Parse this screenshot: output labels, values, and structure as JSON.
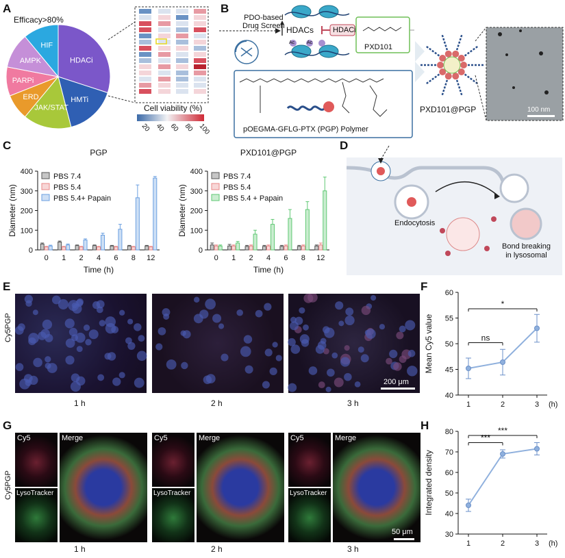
{
  "panel_letters": {
    "A": "A",
    "B": "B",
    "C": "C",
    "D": "D",
    "E": "E",
    "F": "F",
    "G": "G",
    "H": "H"
  },
  "panelA": {
    "title": "Efficacy>80%",
    "slices": [
      {
        "label": "HDACi",
        "value": 30,
        "color": "#7b57c9"
      },
      {
        "label": "HMTi",
        "value": 16,
        "color": "#2f5fb3"
      },
      {
        "label": "JAK/STAT",
        "value": 15,
        "color": "#a8c83a"
      },
      {
        "label": "ERD",
        "value": 8,
        "color": "#e99a2b"
      },
      {
        "label": "PARPi",
        "value": 9,
        "color": "#f07aa0"
      },
      {
        "label": "AMPK",
        "value": 11,
        "color": "#c58fd8"
      },
      {
        "label": "HIF",
        "value": 11,
        "color": "#2ba8e0"
      }
    ],
    "colorbar_title": "Cell viability (%)",
    "colorbar_ticks": [
      "20",
      "40",
      "60",
      "80",
      "100"
    ]
  },
  "panelB": {
    "screen_label_1": "PDO-based",
    "screen_label_2": "Drug Screen",
    "hdacs": "HDACs",
    "hdaci": "HDACi",
    "drug": "PXD101",
    "ac": "Ac",
    "polymer_label": "pOEGMA-GFLG-PTX (PGP) Polymer",
    "nano_label": "PXD101@PGP",
    "scale": "100 nm"
  },
  "panelD": {
    "endo": "Endocytosis",
    "bond1": "Bond breaking",
    "bond2": "in lysosomal"
  },
  "chart_data": [
    {
      "type": "bar",
      "title": "PGP",
      "xlabel": "Time (h)",
      "ylabel": "Diameter (nm)",
      "categories": [
        "0",
        "1",
        "2",
        "4",
        "6",
        "8",
        "12"
      ],
      "ylim": [
        0,
        400
      ],
      "yticks": [
        "0",
        "100",
        "200",
        "300",
        "400"
      ],
      "series": [
        {
          "name": "PBS 7.4",
          "color": "#555555",
          "values": [
            30,
            40,
            22,
            22,
            20,
            20,
            20
          ],
          "err": [
            5,
            5,
            3,
            3,
            3,
            3,
            3
          ]
        },
        {
          "name": "PBS 5.4",
          "color": "#e88787",
          "values": [
            15,
            15,
            15,
            15,
            15,
            15,
            15
          ],
          "err": [
            3,
            3,
            3,
            3,
            3,
            3,
            3
          ]
        },
        {
          "name": "PBS 5.4+ Papain",
          "color": "#6a9fe0",
          "values": [
            20,
            25,
            50,
            75,
            105,
            265,
            365
          ],
          "err": [
            4,
            5,
            6,
            10,
            25,
            65,
            8
          ]
        }
      ]
    },
    {
      "type": "bar",
      "title": "PXD101@PGP",
      "xlabel": "Time (h)",
      "ylabel": "Diameter (nm)",
      "categories": [
        "0",
        "1",
        "2",
        "4",
        "6",
        "8",
        "12"
      ],
      "ylim": [
        0,
        400
      ],
      "yticks": [
        "0",
        "100",
        "200",
        "300",
        "400"
      ],
      "series": [
        {
          "name": "PBS 7.4",
          "color": "#555555",
          "values": [
            25,
            20,
            18,
            18,
            18,
            18,
            20
          ],
          "err": [
            10,
            8,
            5,
            5,
            5,
            5,
            5
          ]
        },
        {
          "name": "PBS 5.4",
          "color": "#e88787",
          "values": [
            20,
            20,
            20,
            20,
            20,
            20,
            25
          ],
          "err": [
            5,
            5,
            5,
            5,
            5,
            5,
            10
          ]
        },
        {
          "name": "PBS 5.4 + Papain",
          "color": "#5fc873",
          "values": [
            20,
            35,
            80,
            130,
            160,
            205,
            300
          ],
          "err": [
            5,
            8,
            20,
            25,
            45,
            40,
            70
          ]
        }
      ]
    },
    {
      "type": "line",
      "xlabel": "",
      "ylabel": "Mean Cy5 value",
      "unit": "(h)",
      "x": [
        "1",
        "2",
        "3"
      ],
      "values": [
        45.2,
        46.4,
        53.0
      ],
      "err": [
        2.0,
        2.5,
        2.7
      ],
      "ylim": [
        40,
        60
      ],
      "yticks": [
        "40",
        "45",
        "50",
        "55",
        "60"
      ],
      "annotations": [
        {
          "from": 1,
          "to": 2,
          "text": "ns"
        },
        {
          "from": 1,
          "to": 3,
          "text": "*"
        }
      ]
    },
    {
      "type": "line",
      "xlabel": "",
      "ylabel": "Integrated density",
      "unit": "(h)",
      "x": [
        "1",
        "2",
        "3"
      ],
      "values": [
        44,
        69,
        71.5
      ],
      "err": [
        3,
        2,
        3
      ],
      "ylim": [
        30,
        80
      ],
      "yticks": [
        "30",
        "40",
        "50",
        "60",
        "70",
        "80"
      ],
      "annotations": [
        {
          "from": 1,
          "to": 2,
          "text": "***"
        },
        {
          "from": 1,
          "to": 3,
          "text": "***"
        }
      ]
    }
  ],
  "panelE": {
    "row_label": "Cy5PGP",
    "times": [
      "1 h",
      "2 h",
      "3 h"
    ],
    "scale": "200 μm"
  },
  "panelG": {
    "row_label": "Cy5PGP",
    "times": [
      "1 h",
      "2 h",
      "3 h"
    ],
    "cy5": "Cy5",
    "merge": "Merge",
    "lyso": "LysoTracker",
    "scale": "50 μm"
  }
}
